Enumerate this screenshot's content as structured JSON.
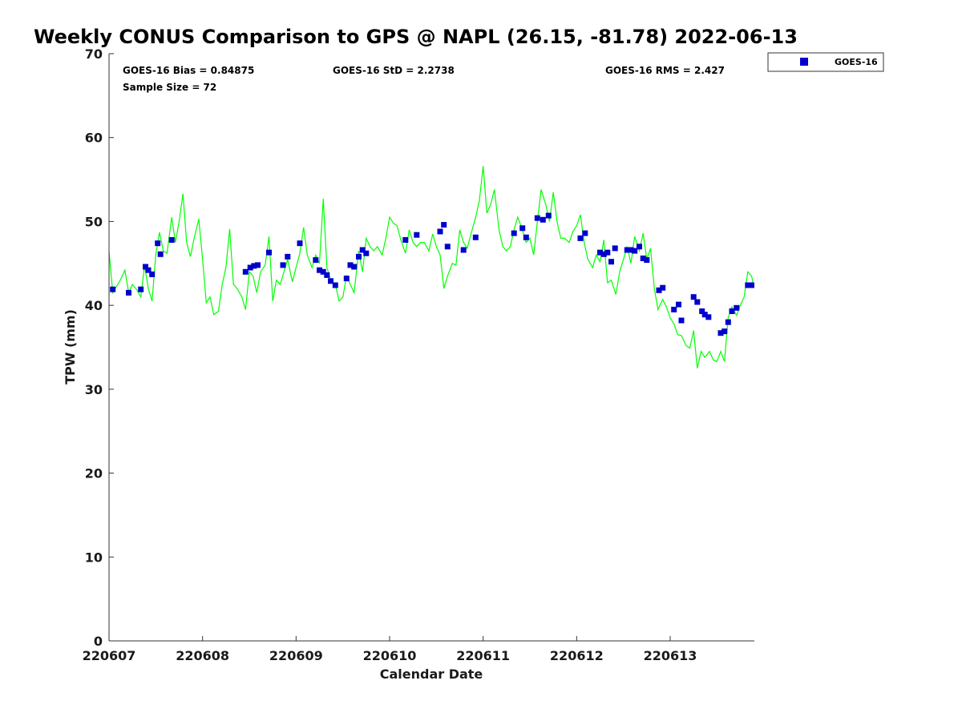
{
  "chart_data": {
    "type": "scatter",
    "title": "Weekly CONUS Comparison to GPS @ NAPL (26.15, -81.78) 2022-06-13",
    "xlabel": "Calendar Date",
    "ylabel": "TPW (mm)",
    "xlim": [
      220607,
      220613.9
    ],
    "ylim": [
      0,
      70
    ],
    "x_ticks": [
      {
        "value": 220607,
        "label": "220607"
      },
      {
        "value": 220608,
        "label": "220608"
      },
      {
        "value": 220609,
        "label": "220609"
      },
      {
        "value": 220610,
        "label": "220610"
      },
      {
        "value": 220611,
        "label": "220611"
      },
      {
        "value": 220612,
        "label": "220612"
      },
      {
        "value": 220613,
        "label": "220613"
      }
    ],
    "y_ticks": [
      {
        "value": 0,
        "label": "0"
      },
      {
        "value": 10,
        "label": "10"
      },
      {
        "value": 20,
        "label": "20"
      },
      {
        "value": 30,
        "label": "30"
      },
      {
        "value": 40,
        "label": "40"
      },
      {
        "value": 50,
        "label": "50"
      },
      {
        "value": 60,
        "label": "60"
      },
      {
        "value": 70,
        "label": "70"
      }
    ],
    "stats": {
      "bias": "GOES-16 Bias = 0.84875",
      "std": "GOES-16 StD = 2.2738",
      "rms": "GOES-16 RMS = 2.427",
      "sample": "Sample Size = 72"
    },
    "legend": {
      "position": "outside-top-right",
      "entries": [
        {
          "name": "GOES-16",
          "color": "#0000cc",
          "marker": "square"
        }
      ]
    },
    "grid": false,
    "series": [
      {
        "name": "GOES-16",
        "type": "scatter",
        "color": "#0000cc",
        "points": [
          [
            220607.04,
            41.9
          ],
          [
            220607.21,
            41.5
          ],
          [
            220607.34,
            41.9
          ],
          [
            220607.39,
            44.6
          ],
          [
            220607.42,
            44.2
          ],
          [
            220607.46,
            43.7
          ],
          [
            220607.52,
            47.4
          ],
          [
            220607.55,
            46.1
          ],
          [
            220607.67,
            47.8
          ],
          [
            220608.46,
            44.0
          ],
          [
            220608.51,
            44.5
          ],
          [
            220608.55,
            44.7
          ],
          [
            220608.59,
            44.8
          ],
          [
            220608.71,
            46.3
          ],
          [
            220608.86,
            44.8
          ],
          [
            220608.91,
            45.8
          ],
          [
            220609.04,
            47.4
          ],
          [
            220609.21,
            45.4
          ],
          [
            220609.25,
            44.2
          ],
          [
            220609.29,
            44.0
          ],
          [
            220609.33,
            43.6
          ],
          [
            220609.37,
            42.9
          ],
          [
            220609.42,
            42.4
          ],
          [
            220609.54,
            43.2
          ],
          [
            220609.58,
            44.8
          ],
          [
            220609.62,
            44.6
          ],
          [
            220609.67,
            45.8
          ],
          [
            220609.71,
            46.6
          ],
          [
            220609.75,
            46.2
          ],
          [
            220610.17,
            47.8
          ],
          [
            220610.29,
            48.4
          ],
          [
            220610.54,
            48.8
          ],
          [
            220610.58,
            49.6
          ],
          [
            220610.62,
            47.0
          ],
          [
            220610.79,
            46.6
          ],
          [
            220610.92,
            48.1
          ],
          [
            220611.33,
            48.6
          ],
          [
            220611.42,
            49.2
          ],
          [
            220611.46,
            48.1
          ],
          [
            220611.58,
            50.4
          ],
          [
            220611.64,
            50.2
          ],
          [
            220611.7,
            50.7
          ],
          [
            220612.04,
            48.0
          ],
          [
            220612.09,
            48.6
          ],
          [
            220612.25,
            46.3
          ],
          [
            220612.29,
            46.1
          ],
          [
            220612.33,
            46.3
          ],
          [
            220612.37,
            45.2
          ],
          [
            220612.41,
            46.8
          ],
          [
            220612.54,
            46.6
          ],
          [
            220612.58,
            46.6
          ],
          [
            220612.62,
            46.5
          ],
          [
            220612.67,
            47.0
          ],
          [
            220612.71,
            45.6
          ],
          [
            220612.75,
            45.4
          ],
          [
            220612.88,
            41.8
          ],
          [
            220612.92,
            42.1
          ],
          [
            220613.04,
            39.5
          ],
          [
            220613.09,
            40.1
          ],
          [
            220613.12,
            38.2
          ],
          [
            220613.25,
            41.0
          ],
          [
            220613.29,
            40.4
          ],
          [
            220613.34,
            39.3
          ],
          [
            220613.37,
            38.9
          ],
          [
            220613.41,
            38.6
          ],
          [
            220613.54,
            36.7
          ],
          [
            220613.58,
            36.9
          ],
          [
            220613.62,
            38.0
          ],
          [
            220613.66,
            39.3
          ],
          [
            220613.71,
            39.7
          ],
          [
            220613.83,
            42.4
          ],
          [
            220613.87,
            42.4
          ]
        ]
      },
      {
        "type": "line",
        "color": "#00ff00",
        "points": [
          [
            220607.0,
            46.4
          ],
          [
            220607.04,
            41.5
          ],
          [
            220607.12,
            43.0
          ],
          [
            220607.17,
            44.2
          ],
          [
            220607.21,
            41.5
          ],
          [
            220607.25,
            42.5
          ],
          [
            220607.3,
            41.8
          ],
          [
            220607.34,
            41.0
          ],
          [
            220607.38,
            44.8
          ],
          [
            220607.42,
            42.0
          ],
          [
            220607.46,
            40.5
          ],
          [
            220607.5,
            46.0
          ],
          [
            220607.54,
            48.7
          ],
          [
            220607.58,
            46.5
          ],
          [
            220607.62,
            46.2
          ],
          [
            220607.67,
            50.5
          ],
          [
            220607.71,
            47.5
          ],
          [
            220607.75,
            50.0
          ],
          [
            220607.79,
            53.3
          ],
          [
            220607.83,
            47.5
          ],
          [
            220607.87,
            45.8
          ],
          [
            220607.91,
            48.0
          ],
          [
            220607.96,
            50.3
          ],
          [
            220608.0,
            45.5
          ],
          [
            220608.04,
            40.3
          ],
          [
            220608.08,
            41.0
          ],
          [
            220608.12,
            38.9
          ],
          [
            220608.17,
            39.3
          ],
          [
            220608.21,
            42.5
          ],
          [
            220608.25,
            44.5
          ],
          [
            220608.29,
            49.1
          ],
          [
            220608.33,
            42.5
          ],
          [
            220608.37,
            42.0
          ],
          [
            220608.42,
            41.0
          ],
          [
            220608.46,
            39.5
          ],
          [
            220608.5,
            44.0
          ],
          [
            220608.54,
            43.5
          ],
          [
            220608.58,
            41.5
          ],
          [
            220608.62,
            44.0
          ],
          [
            220608.67,
            44.8
          ],
          [
            220608.71,
            48.2
          ],
          [
            220608.75,
            40.5
          ],
          [
            220608.79,
            43.0
          ],
          [
            220608.83,
            42.5
          ],
          [
            220608.87,
            44.0
          ],
          [
            220608.91,
            45.5
          ],
          [
            220608.96,
            42.8
          ],
          [
            220609.0,
            44.5
          ],
          [
            220609.04,
            46.2
          ],
          [
            220609.08,
            49.3
          ],
          [
            220609.12,
            46.0
          ],
          [
            220609.17,
            44.5
          ],
          [
            220609.21,
            46.0
          ],
          [
            220609.25,
            45.0
          ],
          [
            220609.29,
            52.7
          ],
          [
            220609.33,
            44.5
          ],
          [
            220609.37,
            43.0
          ],
          [
            220609.42,
            42.5
          ],
          [
            220609.46,
            40.5
          ],
          [
            220609.5,
            41.0
          ],
          [
            220609.54,
            43.5
          ],
          [
            220609.58,
            42.5
          ],
          [
            220609.62,
            41.5
          ],
          [
            220609.67,
            46.5
          ],
          [
            220609.71,
            44.0
          ],
          [
            220609.75,
            48.0
          ],
          [
            220609.79,
            47.0
          ],
          [
            220609.83,
            46.5
          ],
          [
            220609.87,
            47.0
          ],
          [
            220609.92,
            46.0
          ],
          [
            220609.96,
            48.0
          ],
          [
            220610.0,
            50.5
          ],
          [
            220610.04,
            49.8
          ],
          [
            220610.08,
            49.5
          ],
          [
            220610.12,
            47.8
          ],
          [
            220610.17,
            46.2
          ],
          [
            220610.21,
            49.0
          ],
          [
            220610.25,
            47.5
          ],
          [
            220610.29,
            47.0
          ],
          [
            220610.33,
            47.5
          ],
          [
            220610.37,
            47.5
          ],
          [
            220610.42,
            46.5
          ],
          [
            220610.46,
            48.5
          ],
          [
            220610.5,
            47.0
          ],
          [
            220610.54,
            46.0
          ],
          [
            220610.58,
            42.0
          ],
          [
            220610.62,
            43.5
          ],
          [
            220610.67,
            45.0
          ],
          [
            220610.71,
            44.8
          ],
          [
            220610.75,
            49.0
          ],
          [
            220610.79,
            47.5
          ],
          [
            220610.83,
            46.8
          ],
          [
            220610.87,
            48.5
          ],
          [
            220610.92,
            50.5
          ],
          [
            220610.96,
            52.5
          ],
          [
            220611.0,
            56.6
          ],
          [
            220611.04,
            51.0
          ],
          [
            220611.08,
            52.0
          ],
          [
            220611.12,
            53.8
          ],
          [
            220611.17,
            49.0
          ],
          [
            220611.21,
            47.0
          ],
          [
            220611.25,
            46.5
          ],
          [
            220611.29,
            47.0
          ],
          [
            220611.33,
            49.0
          ],
          [
            220611.37,
            50.5
          ],
          [
            220611.42,
            49.0
          ],
          [
            220611.46,
            47.5
          ],
          [
            220611.5,
            48.0
          ],
          [
            220611.54,
            46.0
          ],
          [
            220611.58,
            50.0
          ],
          [
            220611.62,
            53.8
          ],
          [
            220611.67,
            52.0
          ],
          [
            220611.71,
            50.0
          ],
          [
            220611.75,
            53.5
          ],
          [
            220611.79,
            50.0
          ],
          [
            220611.83,
            48.0
          ],
          [
            220611.87,
            48.0
          ],
          [
            220611.92,
            47.5
          ],
          [
            220611.96,
            48.8
          ],
          [
            220612.0,
            49.5
          ],
          [
            220612.04,
            50.8
          ],
          [
            220612.08,
            47.5
          ],
          [
            220612.12,
            45.5
          ],
          [
            220612.17,
            44.5
          ],
          [
            220612.21,
            46.0
          ],
          [
            220612.25,
            45.2
          ],
          [
            220612.29,
            47.8
          ],
          [
            220612.33,
            42.7
          ],
          [
            220612.37,
            43.0
          ],
          [
            220612.42,
            41.3
          ],
          [
            220612.46,
            44.0
          ],
          [
            220612.5,
            45.5
          ],
          [
            220612.54,
            47.0
          ],
          [
            220612.58,
            45.0
          ],
          [
            220612.62,
            48.2
          ],
          [
            220612.67,
            46.5
          ],
          [
            220612.71,
            48.6
          ],
          [
            220612.75,
            45.5
          ],
          [
            220612.79,
            46.8
          ],
          [
            220612.83,
            42.0
          ],
          [
            220612.87,
            39.5
          ],
          [
            220612.92,
            40.7
          ],
          [
            220612.96,
            39.8
          ],
          [
            220613.0,
            38.5
          ],
          [
            220613.04,
            37.8
          ],
          [
            220613.08,
            36.5
          ],
          [
            220613.12,
            36.4
          ],
          [
            220613.17,
            35.2
          ],
          [
            220613.21,
            34.9
          ],
          [
            220613.25,
            37.0
          ],
          [
            220613.29,
            32.5
          ],
          [
            220613.33,
            34.5
          ],
          [
            220613.37,
            33.8
          ],
          [
            220613.42,
            34.5
          ],
          [
            220613.46,
            33.5
          ],
          [
            220613.5,
            33.3
          ],
          [
            220613.54,
            34.5
          ],
          [
            220613.58,
            33.3
          ],
          [
            220613.62,
            38.5
          ],
          [
            220613.66,
            39.8
          ],
          [
            220613.71,
            38.8
          ],
          [
            220613.75,
            40.0
          ],
          [
            220613.79,
            41.0
          ],
          [
            220613.83,
            44.0
          ],
          [
            220613.87,
            43.5
          ],
          [
            220613.89,
            42.5
          ]
        ]
      }
    ]
  }
}
